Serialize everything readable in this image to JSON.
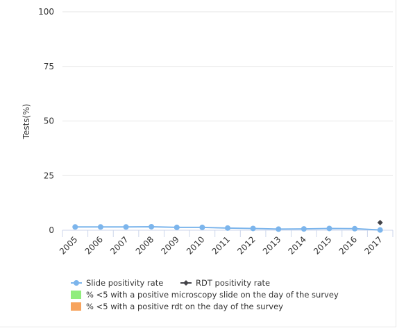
{
  "chart_data": {
    "type": "line",
    "ylabel": "Tests(%)",
    "ylim": [
      0,
      100
    ],
    "yticks": [
      "0",
      "25",
      "50",
      "75",
      "100"
    ],
    "ytick_values": [
      0,
      25,
      50,
      75,
      100
    ],
    "categories": [
      "2005",
      "2006",
      "2007",
      "2008",
      "2009",
      "2010",
      "2011",
      "2012",
      "2013",
      "2014",
      "2015",
      "2016",
      "2017"
    ],
    "series": [
      {
        "name": "Slide positivity rate",
        "color": "#7cb5ec",
        "marker": "circle",
        "values": [
          1.5,
          1.5,
          1.5,
          1.6,
          1.3,
          1.3,
          1.0,
          0.8,
          0.5,
          0.6,
          0.8,
          0.7,
          0.1
        ]
      },
      {
        "name": "RDT positivity rate",
        "color": "#434348",
        "marker": "diamond",
        "values": [
          null,
          null,
          null,
          null,
          null,
          null,
          null,
          null,
          null,
          null,
          null,
          null,
          3.5
        ]
      }
    ],
    "bar_legend": [
      {
        "name": "% <5 with a positive microscopy slide on the day of the survey",
        "color": "#90ed7d"
      },
      {
        "name": "% <5 with a positive rdt on the day of the survey",
        "color": "#f7a35c"
      }
    ],
    "grid": true,
    "legend_position": "bottom-left"
  }
}
